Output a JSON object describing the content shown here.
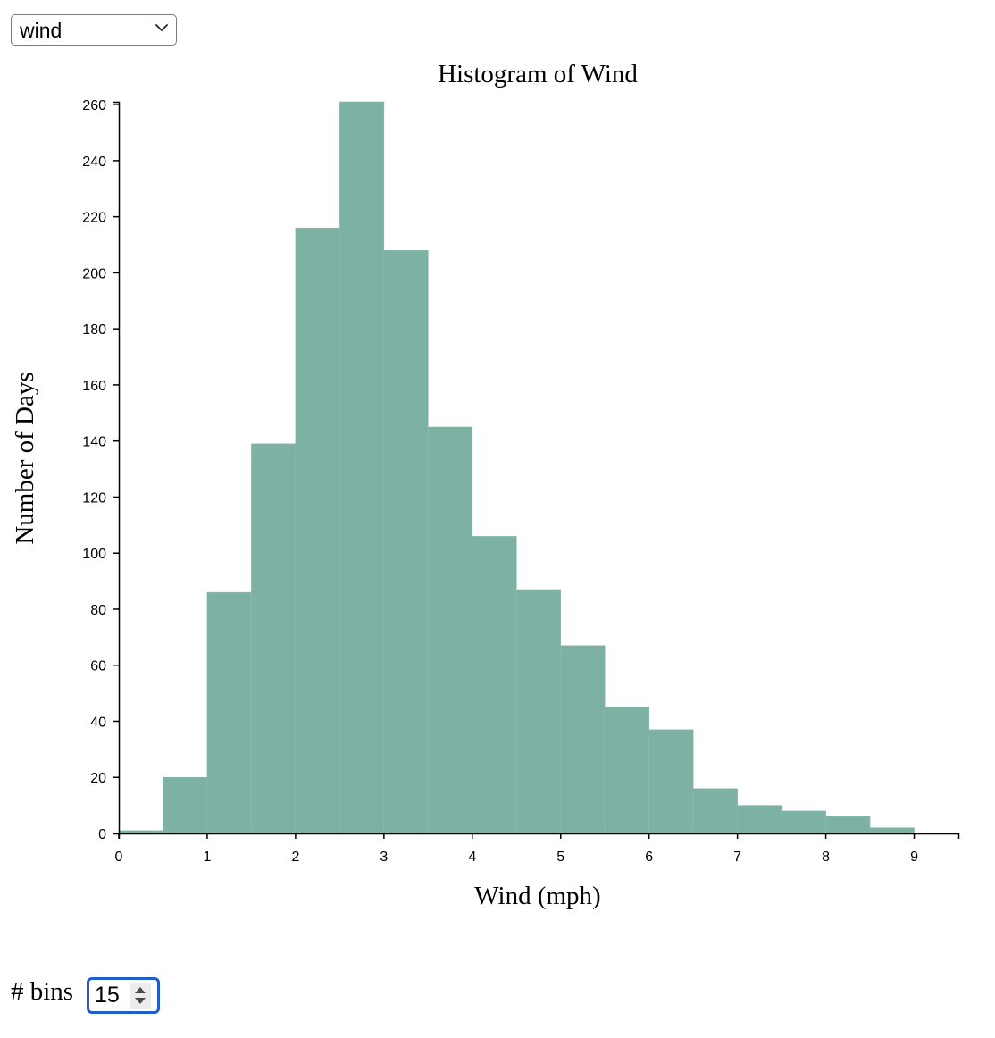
{
  "controls": {
    "variable_select": {
      "selected": "wind"
    },
    "bins": {
      "label": "# bins",
      "value": "15"
    }
  },
  "icons": {
    "select_chevron": "chevron-down-icon",
    "spinner": "up-down-spinner-icon"
  },
  "colors": {
    "bar_fill": "#7db1a3",
    "bar_stroke": "#8cbcaf",
    "axis": "#000000"
  },
  "chart_data": {
    "type": "bar",
    "title": "Histogram of Wind",
    "xlabel": "Wind (mph)",
    "ylabel": "Number of Days",
    "bin_edges": [
      0,
      0.5,
      1,
      1.5,
      2,
      2.5,
      3,
      3.5,
      4,
      4.5,
      5,
      5.5,
      6,
      6.5,
      7,
      7.5,
      8,
      8.5,
      9
    ],
    "values": [
      1,
      20,
      86,
      139,
      216,
      261,
      208,
      145,
      106,
      87,
      67,
      45,
      37,
      16,
      10,
      8,
      6,
      2
    ],
    "xlim": [
      0,
      9.5
    ],
    "ylim": [
      0,
      261
    ],
    "xticks": [
      0,
      1,
      2,
      3,
      4,
      5,
      6,
      7,
      8,
      9
    ],
    "yticks": [
      0,
      20,
      40,
      60,
      80,
      100,
      120,
      140,
      160,
      180,
      200,
      220,
      240,
      260
    ],
    "grid": false,
    "legend": "none"
  }
}
